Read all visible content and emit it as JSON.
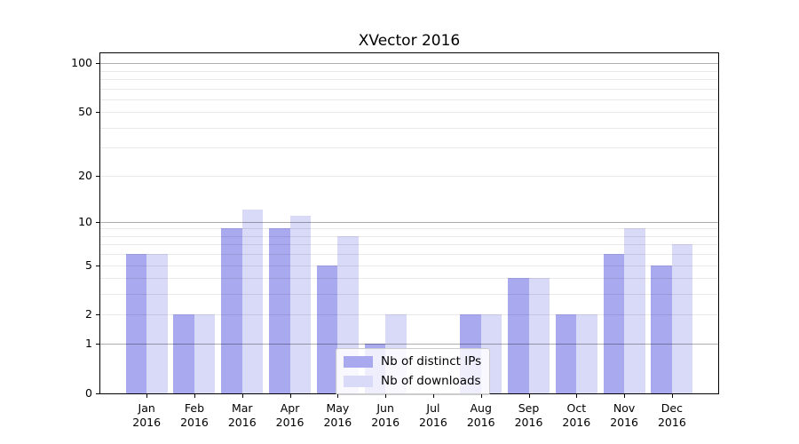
{
  "title": "XVector 2016",
  "chart_data": {
    "type": "bar",
    "title": "XVector 2016",
    "categories": [
      "Jan 2016",
      "Feb 2016",
      "Mar 2016",
      "Apr 2016",
      "May 2016",
      "Jun 2016",
      "Jul 2016",
      "Aug 2016",
      "Sep 2016",
      "Oct 2016",
      "Nov 2016",
      "Dec 2016"
    ],
    "series": [
      {
        "name": "Nb of distinct IPs",
        "color": "#a9a9ef",
        "values": [
          6,
          2,
          9,
          9,
          5,
          1,
          0,
          2,
          4,
          2,
          6,
          5
        ]
      },
      {
        "name": "Nb of downloads",
        "color": "#d9d9f8",
        "values": [
          6,
          2,
          12,
          11,
          8,
          2,
          0,
          2,
          4,
          2,
          9,
          7
        ]
      }
    ],
    "yscale": "log1p",
    "ylim": [
      0,
      115
    ],
    "y_tick_values": [
      0,
      1,
      2,
      5,
      10,
      20,
      50,
      100
    ],
    "y_tick_labels": [
      "0",
      "1",
      "2",
      "5",
      "10",
      "20",
      "50",
      "100"
    ],
    "y_major_gridlines": [
      1,
      10,
      100
    ],
    "y_minor_gridlines": [
      2,
      3,
      4,
      5,
      6,
      7,
      8,
      9,
      20,
      30,
      40,
      50,
      60,
      70,
      80,
      90
    ],
    "grid": true,
    "legend_position": "lower center",
    "colors": {
      "bar_dark": "#a9a9ef",
      "bar_light": "#d9d9f8",
      "grid_major": "rgba(0,0,0,0.32)",
      "grid_minor": "rgba(0,0,0,0.085)",
      "axis": "#000000",
      "legend_border": "#cccccc"
    }
  }
}
